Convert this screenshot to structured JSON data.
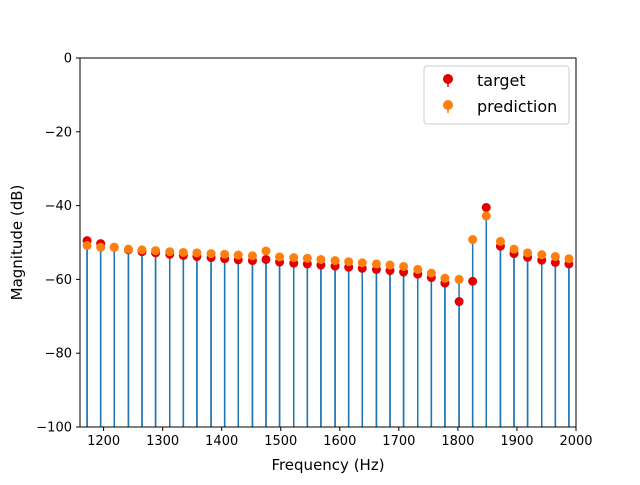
{
  "chart_data": {
    "type": "stem",
    "xlabel": "Frequency (Hz)",
    "ylabel": "Magnitude (dB)",
    "xlim": [
      1160,
      2000
    ],
    "ylim": [
      -100,
      0
    ],
    "xticks": [
      1200,
      1300,
      1400,
      1500,
      1600,
      1700,
      1800,
      1900,
      2000
    ],
    "yticks": [
      0,
      -20,
      -40,
      -60,
      -80,
      -100
    ],
    "ytick_labels": [
      "0",
      "−20",
      "−40",
      "−60",
      "−80",
      "−100"
    ],
    "grid": false,
    "legend_position": "top-right",
    "stem_color": "#1f77b4",
    "x": [
      1172,
      1195,
      1218,
      1242,
      1265,
      1288,
      1312,
      1335,
      1358,
      1382,
      1405,
      1428,
      1452,
      1475,
      1498,
      1522,
      1545,
      1568,
      1592,
      1615,
      1638,
      1662,
      1685,
      1708,
      1732,
      1755,
      1778,
      1802,
      1825,
      1848,
      1872,
      1895,
      1918,
      1942,
      1965,
      1988
    ],
    "series": [
      {
        "name": "target",
        "color": "#e00000",
        "values": [
          -49.5,
          -50.3,
          -51.3,
          -52.0,
          -52.5,
          -52.8,
          -53.2,
          -53.5,
          -53.8,
          -54.1,
          -54.4,
          -54.7,
          -54.9,
          -54.6,
          -55.3,
          -55.6,
          -55.8,
          -56.1,
          -56.4,
          -56.7,
          -57.0,
          -57.3,
          -57.6,
          -58.0,
          -58.6,
          -59.5,
          -61.0,
          -66.0,
          -60.5,
          -40.5,
          -51.0,
          -53.0,
          -54.0,
          -54.8,
          -55.4,
          -55.8
        ]
      },
      {
        "name": "prediction",
        "color": "#ff7f0e",
        "values": [
          -50.8,
          -51.3,
          -51.3,
          -51.8,
          -52.0,
          -52.2,
          -52.5,
          -52.7,
          -52.8,
          -53.0,
          -53.2,
          -53.4,
          -53.6,
          -52.3,
          -53.9,
          -54.1,
          -54.3,
          -54.6,
          -54.9,
          -55.2,
          -55.5,
          -55.8,
          -56.1,
          -56.5,
          -57.3,
          -58.3,
          -59.7,
          -60.0,
          -49.2,
          -42.8,
          -49.7,
          -51.8,
          -52.8,
          -53.3,
          -53.8,
          -54.4
        ]
      }
    ]
  }
}
